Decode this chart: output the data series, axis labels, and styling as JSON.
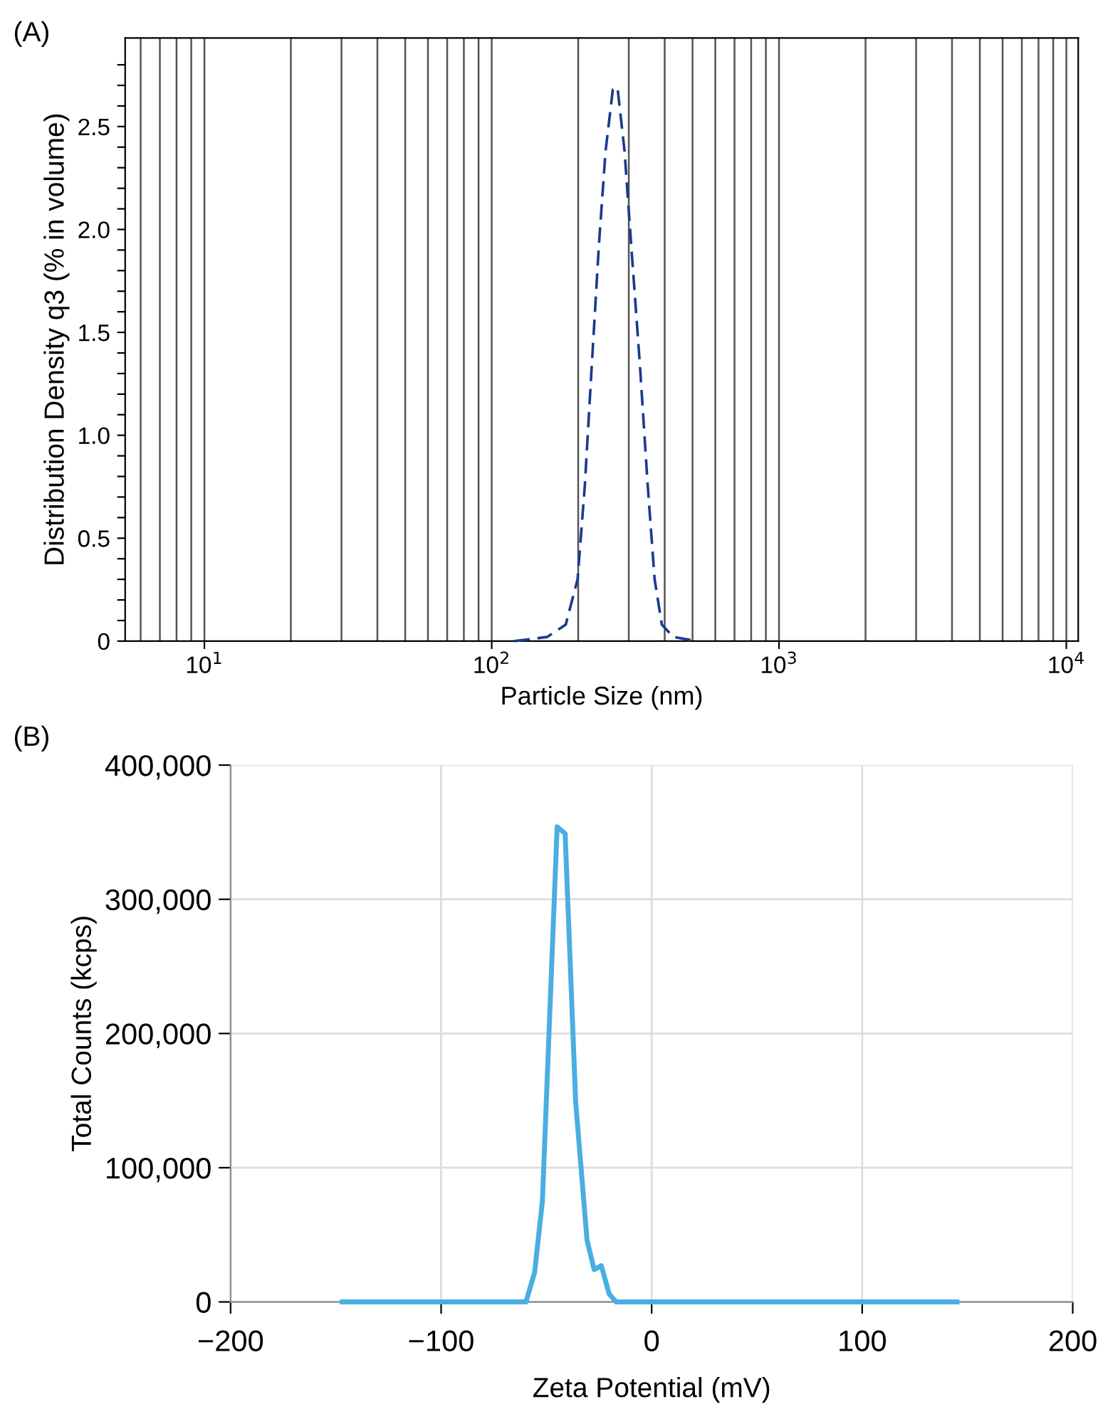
{
  "chart_data": [
    {
      "type": "line",
      "xlabel": "Particle Size (nm)",
      "ylabel": "Distribution Density q3 (% in volume)",
      "annotations": [
        "(A)"
      ],
      "log": "x",
      "grid": "x",
      "line_style": "dashed",
      "marker": "none",
      "xlim": [
        5.3,
        11000
      ],
      "ylim": [
        0,
        2.93
      ],
      "xticks": [
        {
          "value": 6,
          "label": null
        },
        {
          "value": 7,
          "label": null
        },
        {
          "value": 8,
          "label": null
        },
        {
          "value": 9,
          "label": null
        },
        {
          "value": 10,
          "label": "10$^{1}$"
        },
        {
          "value": 20,
          "label": null
        },
        {
          "value": 30,
          "label": null
        },
        {
          "value": 40,
          "label": null
        },
        {
          "value": 50,
          "label": null
        },
        {
          "value": 60,
          "label": null
        },
        {
          "value": 70,
          "label": null
        },
        {
          "value": 80,
          "label": null
        },
        {
          "value": 90,
          "label": null
        },
        {
          "value": 100,
          "label": "10$^{2}$"
        },
        {
          "value": 200,
          "label": null
        },
        {
          "value": 300,
          "label": null
        },
        {
          "value": 400,
          "label": null
        },
        {
          "value": 500,
          "label": null
        },
        {
          "value": 600,
          "label": null
        },
        {
          "value": 700,
          "label": null
        },
        {
          "value": 800,
          "label": null
        },
        {
          "value": 900,
          "label": null
        },
        {
          "value": 1000,
          "label": "10$^{3}$"
        },
        {
          "value": 2000,
          "label": null
        },
        {
          "value": 3000,
          "label": null
        },
        {
          "value": 4000,
          "label": null
        },
        {
          "value": 5000,
          "label": null
        },
        {
          "value": 6000,
          "label": null
        },
        {
          "value": 7000,
          "label": null
        },
        {
          "value": 8000,
          "label": null
        },
        {
          "value": 9000,
          "label": null
        },
        {
          "value": 10000,
          "label": "10$^{4}$"
        }
      ],
      "yticks": [
        0,
        {
          "value": 0.1,
          "label": null
        },
        {
          "value": 0.2,
          "label": null
        },
        {
          "value": 0.3,
          "label": null
        },
        {
          "value": 0.4,
          "label": null
        },
        0.5,
        {
          "value": 0.6,
          "label": null
        },
        {
          "value": 0.7,
          "label": null
        },
        {
          "value": 0.8,
          "label": null
        },
        {
          "value": 0.9,
          "label": null
        },
        {
          "value": 1,
          "label": "1.0"
        },
        {
          "value": 1.1,
          "label": null
        },
        {
          "value": 1.2,
          "label": null
        },
        {
          "value": 1.3,
          "label": null
        },
        {
          "value": 1.4,
          "label": null
        },
        1.5,
        {
          "value": 1.6,
          "label": null
        },
        {
          "value": 1.7,
          "label": null
        },
        {
          "value": 1.8,
          "label": null
        },
        {
          "value": 1.9,
          "label": null
        },
        {
          "value": 2,
          "label": "2.0"
        },
        {
          "value": 2.1,
          "label": null
        },
        {
          "value": 2.2,
          "label": null
        },
        {
          "value": 2.3,
          "label": null
        },
        {
          "value": 2.4,
          "label": null
        },
        2.5,
        {
          "value": 2.6,
          "label": null
        },
        {
          "value": 2.7,
          "label": null
        },
        {
          "value": 2.8,
          "label": null
        }
      ],
      "series": [
        {
          "color": "#1a3a8f",
          "x": [
            120,
            156,
            181,
            199,
            211,
            223,
            236,
            249,
            264,
            274,
            290,
            306,
            328,
            349,
            369,
            391,
            429,
            517
          ],
          "values": [
            0,
            0.02,
            0.08,
            0.3,
            0.76,
            1.34,
            1.92,
            2.38,
            2.68,
            2.69,
            2.38,
            1.92,
            1.34,
            0.76,
            0.3,
            0.08,
            0.02,
            0
          ]
        }
      ]
    },
    {
      "type": "line",
      "xlabel": "Zeta Potential (mV)",
      "ylabel": "Total Counts (kcps)",
      "annotations": [
        "(B)"
      ],
      "grid": true,
      "line_style": "solid",
      "marker": "none",
      "xlim": [
        -200,
        200
      ],
      "ylim": [
        0,
        400000
      ],
      "xticks": [
        {
          "value": -200,
          "label": "−200"
        },
        {
          "value": -100,
          "label": "−100"
        },
        0,
        100,
        200
      ],
      "yticks": [
        0,
        {
          "value": 100000,
          "label": "100,000"
        },
        {
          "value": 200000,
          "label": "200,000"
        },
        {
          "value": 300000,
          "label": "300,000"
        },
        {
          "value": 400000,
          "label": "400,000"
        }
      ],
      "series": [
        {
          "color": "#4aaee0",
          "x": [
            -147,
            -59.7,
            -55.6,
            -51.9,
            -44.9,
            -41.1,
            -36.1,
            -30.7,
            -27.3,
            -23.9,
            -20.2,
            -16.9,
            145
          ],
          "values": [
            0,
            0,
            22000,
            75000,
            354000,
            349000,
            149000,
            46000,
            24000,
            27000,
            6000,
            0,
            0
          ]
        }
      ]
    }
  ]
}
